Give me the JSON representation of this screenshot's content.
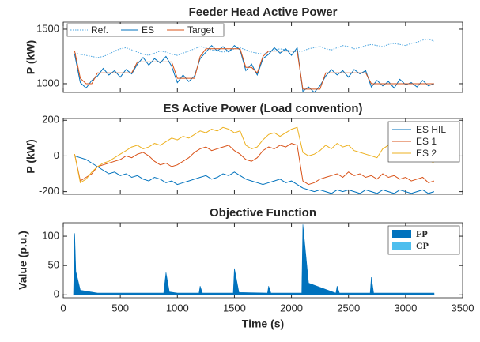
{
  "chart_data": [
    {
      "type": "line",
      "title": "Feeder Head Active Power",
      "ylabel": "P (kW)",
      "x": [
        100,
        150,
        200,
        250,
        300,
        350,
        400,
        450,
        500,
        550,
        600,
        650,
        700,
        750,
        800,
        850,
        900,
        950,
        1000,
        1050,
        1100,
        1150,
        1200,
        1250,
        1300,
        1350,
        1400,
        1450,
        1500,
        1550,
        1600,
        1650,
        1700,
        1750,
        1800,
        1850,
        1900,
        1950,
        2000,
        2050,
        2100,
        2150,
        2200,
        2250,
        2300,
        2350,
        2400,
        2450,
        2500,
        2550,
        2600,
        2650,
        2700,
        2750,
        2800,
        2850,
        2900,
        2950,
        3000,
        3050,
        3100,
        3150,
        3200,
        3250
      ],
      "ylim": [
        920,
        1565
      ],
      "yticks": [
        1000,
        1500
      ],
      "legend": "top",
      "series": [
        {
          "name": "Ref.",
          "color": "#4da6e0",
          "dash": "dotted",
          "values": [
            1280,
            1270,
            1260,
            1250,
            1240,
            1250,
            1270,
            1300,
            1320,
            1330,
            1310,
            1290,
            1270,
            1260,
            1280,
            1300,
            1290,
            1270,
            1260,
            1280,
            1300,
            1320,
            1340,
            1330,
            1310,
            1300,
            1290,
            1300,
            1320,
            1330,
            1310,
            1290,
            1280,
            1270,
            1290,
            1310,
            1320,
            1310,
            1300,
            1290,
            1300,
            1320,
            1330,
            1340,
            1320,
            1310,
            1330,
            1350,
            1340,
            1320,
            1330,
            1350,
            1360,
            1350,
            1340,
            1360,
            1370,
            1360,
            1350,
            1370,
            1380,
            1400,
            1410,
            1390
          ]
        },
        {
          "name": "ES",
          "color": "#0072bd",
          "values": [
            1270,
            1010,
            960,
            1030,
            1070,
            1140,
            1080,
            1120,
            1060,
            1130,
            1090,
            1180,
            1240,
            1170,
            1230,
            1190,
            1250,
            1160,
            1010,
            1080,
            1020,
            1070,
            1230,
            1290,
            1350,
            1300,
            1340,
            1290,
            1350,
            1310,
            1120,
            1180,
            1080,
            1230,
            1270,
            1330,
            1280,
            1320,
            1260,
            1330,
            930,
            970,
            920,
            980,
            1070,
            1130,
            1080,
            1120,
            1060,
            1130,
            1090,
            1120,
            970,
            1030,
            980,
            1020,
            960,
            1040,
            990,
            1010,
            970,
            1030,
            980,
            1000
          ]
        },
        {
          "name": "Target",
          "color": "#d95319",
          "values": [
            1300,
            1050,
            1000,
            1000,
            1100,
            1100,
            1100,
            1100,
            1100,
            1100,
            1100,
            1200,
            1200,
            1200,
            1200,
            1200,
            1200,
            1200,
            1050,
            1050,
            1050,
            1050,
            1250,
            1320,
            1320,
            1320,
            1320,
            1320,
            1320,
            1320,
            1150,
            1150,
            1100,
            1250,
            1300,
            1300,
            1300,
            1300,
            1300,
            1300,
            950,
            950,
            950,
            950,
            1100,
            1100,
            1100,
            1100,
            1100,
            1100,
            1100,
            1100,
            1000,
            1000,
            1000,
            1000,
            1000,
            1000,
            1000,
            1000,
            1000,
            1000,
            1000,
            1000
          ]
        }
      ]
    },
    {
      "type": "line",
      "title": "ES Active Power (Load convention)",
      "ylabel": "P (kW)",
      "x": [
        100,
        150,
        200,
        250,
        300,
        350,
        400,
        450,
        500,
        550,
        600,
        650,
        700,
        750,
        800,
        850,
        900,
        950,
        1000,
        1050,
        1100,
        1150,
        1200,
        1250,
        1300,
        1350,
        1400,
        1450,
        1500,
        1550,
        1600,
        1650,
        1700,
        1750,
        1800,
        1850,
        1900,
        1950,
        2000,
        2050,
        2100,
        2150,
        2200,
        2250,
        2300,
        2350,
        2400,
        2450,
        2500,
        2550,
        2600,
        2650,
        2700,
        2750,
        2800,
        2850,
        2900,
        2950,
        3000,
        3050,
        3100,
        3150,
        3200,
        3250
      ],
      "ylim": [
        -215,
        210
      ],
      "yticks": [
        -200,
        0,
        200
      ],
      "legend": "right",
      "series": [
        {
          "name": "ES HIL",
          "color": "#0072bd",
          "values": [
            0,
            -10,
            -20,
            -40,
            -60,
            -80,
            -100,
            -90,
            -110,
            -100,
            -120,
            -110,
            -130,
            -140,
            -120,
            -130,
            -150,
            -140,
            -160,
            -150,
            -140,
            -130,
            -120,
            -110,
            -130,
            -120,
            -100,
            -110,
            -90,
            -110,
            -130,
            -140,
            -150,
            -160,
            -150,
            -140,
            -130,
            -150,
            -140,
            -160,
            -180,
            -190,
            -200,
            -190,
            -200,
            -210,
            -190,
            -200,
            -190,
            -200,
            -210,
            -190,
            -200,
            -210,
            -190,
            -200,
            -210,
            -190,
            -200,
            -210,
            -200,
            -190,
            -210,
            -200
          ]
        },
        {
          "name": "ES 1",
          "color": "#d95319",
          "values": [
            10,
            -140,
            -120,
            -100,
            -60,
            -50,
            -40,
            -30,
            -20,
            0,
            -10,
            10,
            20,
            0,
            -30,
            -50,
            -40,
            -60,
            -50,
            -30,
            -10,
            20,
            40,
            50,
            30,
            40,
            50,
            60,
            30,
            10,
            -20,
            -30,
            -10,
            30,
            50,
            40,
            60,
            50,
            70,
            60,
            -140,
            -160,
            -150,
            -130,
            -120,
            -110,
            -100,
            -120,
            -90,
            -110,
            -100,
            -120,
            -110,
            -130,
            -100,
            -120,
            -110,
            -130,
            -120,
            -140,
            -130,
            -120,
            -150,
            -140
          ]
        },
        {
          "name": "ES 2",
          "color": "#edb120",
          "values": [
            10,
            -150,
            -130,
            -90,
            -60,
            -40,
            -30,
            -10,
            10,
            30,
            50,
            60,
            40,
            50,
            70,
            60,
            80,
            100,
            90,
            110,
            100,
            120,
            140,
            130,
            150,
            140,
            160,
            150,
            130,
            140,
            60,
            40,
            50,
            90,
            120,
            130,
            110,
            130,
            150,
            160,
            20,
            0,
            10,
            30,
            60,
            40,
            70,
            50,
            60,
            30,
            20,
            10,
            0,
            -10,
            40,
            60,
            50,
            30,
            40,
            60,
            20,
            0,
            -20,
            -40
          ]
        }
      ]
    },
    {
      "type": "area",
      "title": "Objective Function",
      "ylabel": "Value (p.u.)",
      "xlabel": "Time (s)",
      "x": [
        90,
        100,
        110,
        150,
        300,
        600,
        880,
        900,
        930,
        1000,
        1190,
        1200,
        1220,
        1490,
        1500,
        1540,
        1790,
        1800,
        1820,
        2090,
        2100,
        2150,
        2390,
        2400,
        2420,
        2690,
        2700,
        2720,
        3000,
        3250
      ],
      "xlim": [
        0,
        3500
      ],
      "xticks": [
        0,
        500,
        1000,
        1500,
        2000,
        2500,
        3000,
        3500
      ],
      "ylim": [
        -5,
        123
      ],
      "yticks": [
        0,
        50,
        100
      ],
      "legend": "right",
      "series": [
        {
          "name": "FP",
          "color": "#0072bd",
          "values": [
            3,
            105,
            40,
            8,
            3,
            3,
            3,
            38,
            5,
            3,
            3,
            15,
            3,
            3,
            45,
            4,
            3,
            15,
            3,
            3,
            120,
            20,
            3,
            15,
            3,
            3,
            30,
            3,
            3,
            3
          ]
        },
        {
          "name": "CP",
          "color": "#4dbeee",
          "values": [
            1,
            2,
            2,
            1,
            1,
            1,
            1,
            2,
            1,
            1,
            1,
            1,
            1,
            1,
            2,
            1,
            1,
            1,
            1,
            1,
            2,
            1,
            1,
            1,
            1,
            1,
            2,
            1,
            1,
            1
          ]
        }
      ]
    }
  ]
}
